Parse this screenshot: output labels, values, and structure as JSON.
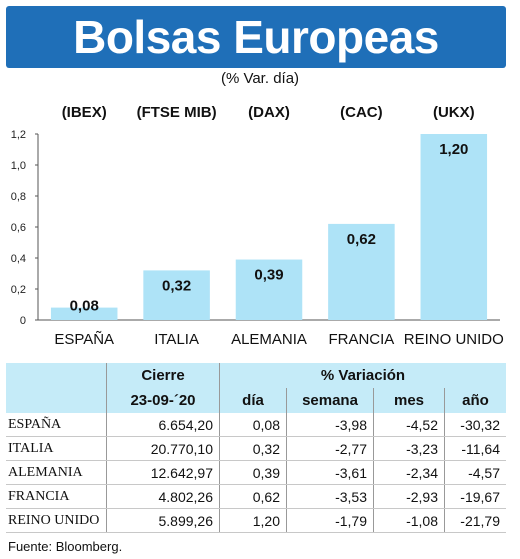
{
  "header": {
    "title": "Bolsas Europeas",
    "subtitle": "(% Var. día)"
  },
  "chart_data": {
    "type": "bar",
    "categories": [
      "ESPAÑA",
      "ITALIA",
      "ALEMANIA",
      "FRANCIA",
      "REINO UNIDO"
    ],
    "index_labels": [
      "(IBEX)",
      "(FTSE MIB)",
      "(DAX)",
      "(CAC)",
      "(UKX)"
    ],
    "values": [
      0.08,
      0.32,
      0.39,
      0.62,
      1.2
    ],
    "value_labels": [
      "0,08",
      "0,32",
      "0,39",
      "0,62",
      "1,20"
    ],
    "yticks": [
      0,
      0.2,
      0.4,
      0.6,
      0.8,
      1.0,
      1.2
    ],
    "ytick_labels": [
      "0",
      "0,2",
      "0,4",
      "0,6",
      "0,8",
      "1,0",
      "1,2"
    ],
    "ylim": [
      0,
      1.2
    ],
    "grid": false,
    "bar_color": "#aee3f7"
  },
  "table": {
    "group_headers": [
      "Cierre",
      "% Variación"
    ],
    "sub_headers": [
      "23-09-´20",
      "día",
      "semana",
      "mes",
      "año"
    ],
    "rows": [
      {
        "name": "ESPAÑA",
        "cierre": "6.654,20",
        "dia": "0,08",
        "semana": "-3,98",
        "mes": "-4,52",
        "ano": "-30,32"
      },
      {
        "name": "ITALIA",
        "cierre": "20.770,10",
        "dia": "0,32",
        "semana": "-2,77",
        "mes": "-3,23",
        "ano": "-11,64"
      },
      {
        "name": "ALEMANIA",
        "cierre": "12.642,97",
        "dia": "0,39",
        "semana": "-3,61",
        "mes": "-2,34",
        "ano": "-4,57"
      },
      {
        "name": "FRANCIA",
        "cierre": "4.802,26",
        "dia": "0,62",
        "semana": "-3,53",
        "mes": "-2,93",
        "ano": "-19,67"
      },
      {
        "name": "REINO UNIDO",
        "cierre": "5.899,26",
        "dia": "1,20",
        "semana": "-1,79",
        "mes": "-1,08",
        "ano": "-21,79"
      }
    ],
    "header_color": "#c5ebf8"
  },
  "footer": {
    "source": "Fuente: Bloomberg."
  },
  "colors": {
    "banner": "#1f6fb8"
  }
}
